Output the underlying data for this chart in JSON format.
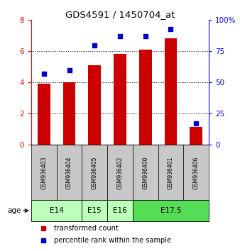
{
  "title": "GDS4591 / 1450704_at",
  "samples": [
    "GSM936403",
    "GSM936404",
    "GSM936405",
    "GSM936402",
    "GSM936400",
    "GSM936401",
    "GSM936406"
  ],
  "transformed_counts": [
    3.9,
    4.0,
    5.1,
    5.85,
    6.1,
    6.85,
    1.15
  ],
  "percentile_ranks": [
    57,
    60,
    80,
    87,
    87,
    93,
    17
  ],
  "bar_color": "#cc0000",
  "dot_color": "#0000cc",
  "left_ylim": [
    0,
    8
  ],
  "right_ylim": [
    0,
    100
  ],
  "left_yticks": [
    0,
    2,
    4,
    6,
    8
  ],
  "right_yticks": [
    0,
    25,
    50,
    75,
    100
  ],
  "right_yticklabels": [
    "0",
    "25",
    "50",
    "75",
    "100%"
  ],
  "dotted_lines": [
    2,
    4,
    6
  ],
  "age_groups": [
    {
      "label": "E14",
      "start": 0,
      "end": 2,
      "color": "#bbffbb"
    },
    {
      "label": "E15",
      "start": 2,
      "end": 3,
      "color": "#bbffbb"
    },
    {
      "label": "E16",
      "start": 3,
      "end": 4,
      "color": "#bbffbb"
    },
    {
      "label": "E17.5",
      "start": 4,
      "end": 7,
      "color": "#55dd55"
    }
  ],
  "age_label": "age",
  "legend_bar_label": "transformed count",
  "legend_dot_label": "percentile rank within the sample",
  "sample_box_color": "#c8c8c8",
  "plot_area_bg": "#ffffff"
}
